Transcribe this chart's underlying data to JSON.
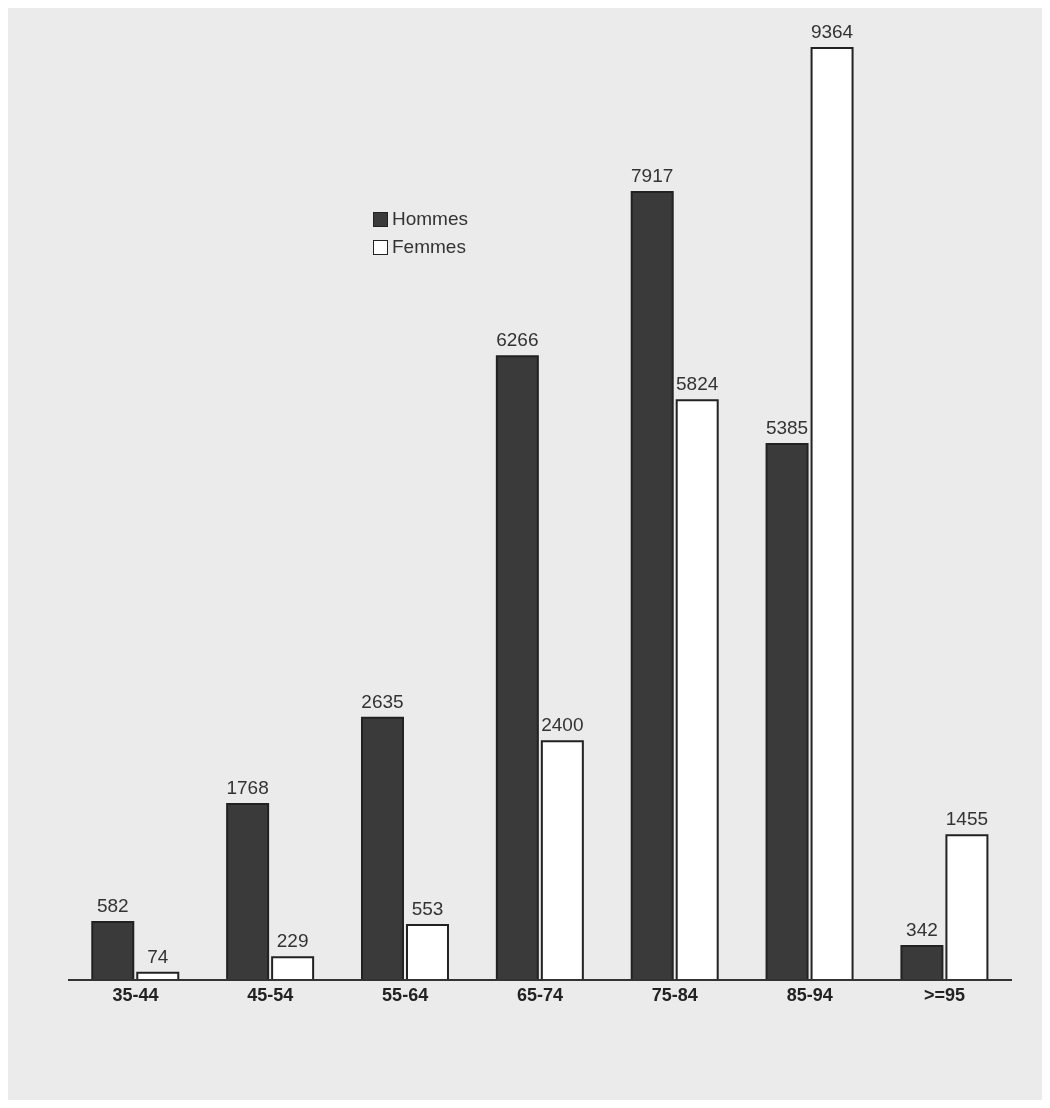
{
  "chart_data": {
    "type": "bar",
    "categories": [
      "35-44",
      "45-54",
      "55-64",
      "65-74",
      "75-84",
      "85-94",
      ">=95"
    ],
    "series": [
      {
        "name": "Hommes",
        "color": "#3a3a3a",
        "values": [
          582,
          1768,
          2635,
          6266,
          7917,
          5385,
          342
        ]
      },
      {
        "name": "Femmes",
        "color": "#ffffff",
        "values": [
          74,
          229,
          553,
          2400,
          5824,
          9364,
          1455
        ]
      }
    ],
    "data_labels": true,
    "legend": "top",
    "grid": false
  }
}
